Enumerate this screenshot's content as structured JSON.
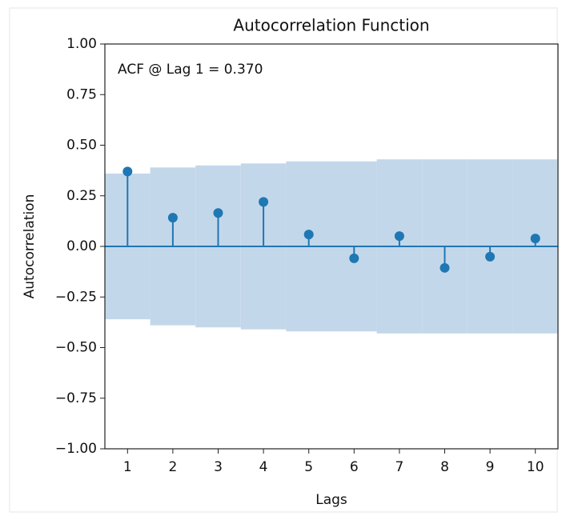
{
  "chart_data": {
    "type": "stem",
    "title": "Autocorrelation Function",
    "annotation": "ACF @ Lag 1 = 0.370",
    "x_label": "Lags",
    "y_label": "Autocorrelation",
    "x": [
      1,
      2,
      3,
      4,
      5,
      6,
      7,
      8,
      9,
      10
    ],
    "values": [
      0.37,
      0.142,
      0.165,
      0.22,
      0.059,
      -0.059,
      0.051,
      -0.106,
      -0.051,
      0.039
    ],
    "confidence_band": [
      0.36,
      0.39,
      0.4,
      0.41,
      0.42,
      0.42,
      0.43,
      0.43,
      0.43,
      0.43
    ],
    "color": "#1f77b4",
    "band_color": "#c3d7ea",
    "xlim": [
      0.5,
      10.5
    ],
    "ylim": [
      -1,
      1
    ],
    "xticks": [
      1,
      2,
      3,
      4,
      5,
      6,
      7,
      8,
      9,
      10
    ],
    "yticks": [
      {
        "value": -1,
        "label": "−1.00"
      },
      {
        "value": -0.75,
        "label": "−0.75"
      },
      {
        "value": -0.5,
        "label": "−0.50"
      },
      {
        "value": -0.25,
        "label": "−0.25"
      },
      {
        "value": 0,
        "label": "0.00"
      },
      {
        "value": 0.25,
        "label": "0.25"
      },
      {
        "value": 0.5,
        "label": "0.50"
      },
      {
        "value": 0.75,
        "label": "0.75"
      },
      {
        "value": 1,
        "label": "1.00"
      }
    ]
  }
}
